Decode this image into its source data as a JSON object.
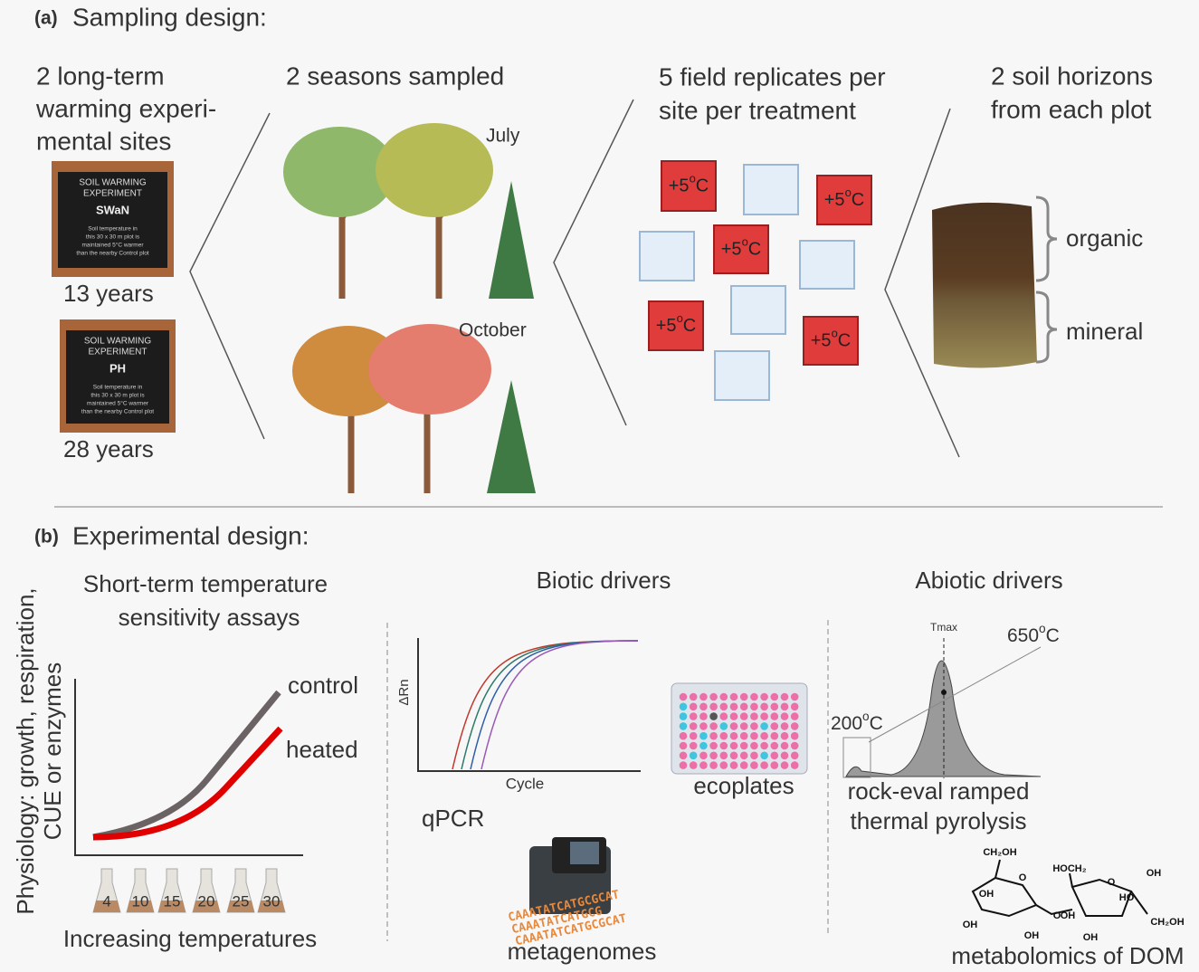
{
  "panel_a": {
    "letter": "(a)",
    "title": "Sampling design:",
    "sites": {
      "heading": [
        "2 long-term",
        "warming experi-",
        "mental sites"
      ],
      "signs": [
        {
          "header": [
            "SOIL WARMING",
            "EXPERIMENT"
          ],
          "name": "SWaN",
          "body": [
            "Soil temperature in",
            "this 30 x 30 m plot is",
            "maintained 5°C warmer",
            "than the nearby Control plot"
          ],
          "duration": "13 years"
        },
        {
          "header": [
            "SOIL WARMING",
            "EXPERIMENT"
          ],
          "name": "PH",
          "body": [
            "Soil temperature in",
            "this 30 x 30 m plot is",
            "maintained 5°C warmer",
            "than the nearby Control plot"
          ],
          "duration": "28 years"
        }
      ]
    },
    "seasons": {
      "heading": "2 seasons sampled",
      "labels": [
        "July",
        "October"
      ]
    },
    "replicates": {
      "heading": [
        "5 field replicates per",
        "site per treatment"
      ],
      "heated_labels": [
        {
          "base": "+5",
          "sup": "o",
          "unit": "C"
        },
        {
          "base": "+5",
          "sup": "o",
          "unit": "C"
        },
        {
          "base": "+5",
          "sup": "o",
          "unit": "C"
        },
        {
          "base": "+5",
          "sup": "o",
          "unit": "C"
        },
        {
          "base": "+5",
          "sup": "o",
          "unit": "C"
        }
      ]
    },
    "horizons": {
      "heading": [
        "2 soil horizons",
        "from each plot"
      ],
      "labels": [
        "organic",
        "mineral"
      ]
    }
  },
  "panel_b": {
    "letter": "(b)",
    "title": "Experimental design:",
    "assays": {
      "heading": [
        "Short-term temperature",
        "sensitivity assays"
      ],
      "y_label": [
        "Physiology: growth, respiration,",
        "CUE or enzymes"
      ],
      "curve_labels": [
        "control",
        "heated"
      ],
      "temperatures": [
        "4",
        "10",
        "15",
        "20",
        "25",
        "30"
      ],
      "x_label": "Increasing temperatures"
    },
    "biotic": {
      "heading": "Biotic drivers",
      "qpcr_y": "ΔRn",
      "qpcr_x": "Cycle",
      "qpcr": "qPCR",
      "ecoplates": "ecoplates",
      "dna": [
        "CAAATATCATGCGCAT",
        "CAAATATCATGCG",
        "CAAATATCATGCGCAT"
      ],
      "metagenomes": "metagenomes"
    },
    "abiotic": {
      "heading": "Abiotic drivers",
      "tmax": "Tmax",
      "high_temp": {
        "base": "650",
        "sup": "o",
        "unit": "C"
      },
      "low_temp": {
        "base": "200",
        "sup": "o",
        "unit": "C"
      },
      "pyrolysis": [
        "rock-eval ramped",
        "thermal pyrolysis"
      ],
      "molecule": [
        "CH₂OH",
        "O",
        "OH",
        "OH",
        "OH",
        "OH",
        "O",
        "HOCH₂",
        "O",
        "HO",
        "OH",
        "CH₂OH",
        "OH"
      ],
      "dom": "metabolomics of DOM"
    }
  }
}
